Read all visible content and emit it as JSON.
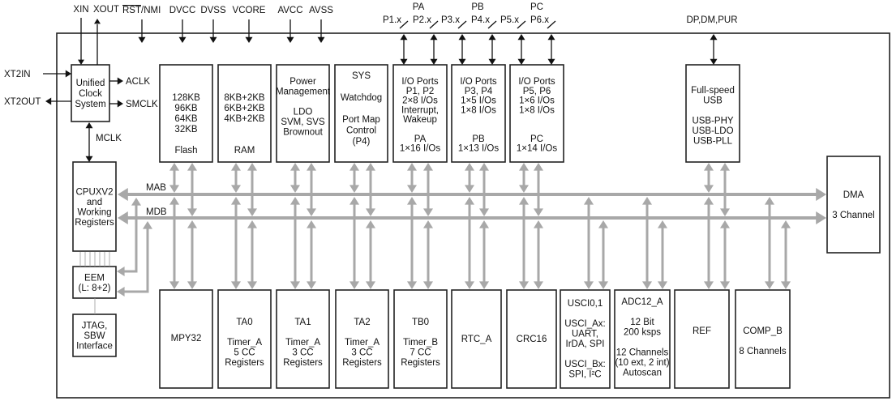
{
  "pins_top": {
    "xin": "XIN",
    "xout": "XOUT",
    "rst": "RST",
    "rst_suffix": "/NMI",
    "dvcc": "DVCC",
    "dvss": "DVSS",
    "vcore": "VCORE",
    "avcc": "AVCC",
    "avss": "AVSS",
    "pa": "PA",
    "pb": "PB",
    "pc": "PC",
    "p1": "P1.x",
    "p2": "P2.x",
    "p3": "P3.x",
    "p4": "P4.x",
    "p5": "P5.x",
    "p6": "P6.x",
    "usb_pins": "DP,DM,PUR"
  },
  "pins_side": {
    "xt2in": "XT2IN",
    "xt2out": "XT2OUT",
    "aclk": "ACLK",
    "smclk": "SMCLK",
    "mclk": "MCLK"
  },
  "buses": {
    "mab": "MAB",
    "mdb": "MDB"
  },
  "blocks": {
    "clock": [
      "Unified",
      "Clock",
      "System"
    ],
    "flash": [
      "128KB",
      "96KB",
      "64KB",
      "32KB",
      "",
      "Flash"
    ],
    "ram": [
      "8KB+2KB",
      "6KB+2KB",
      "4KB+2KB",
      "",
      "",
      "RAM"
    ],
    "power": [
      "Power",
      "Management",
      "",
      "LDO",
      "SVM, SVS",
      "Brownout"
    ],
    "sys": [
      "SYS",
      "",
      "Watchdog",
      "",
      "Port Map",
      "Control",
      "(P4)"
    ],
    "pa": [
      "I/O Ports",
      "P1, P2",
      "2×8 I/Os",
      "Interrupt,",
      "Wakeup",
      "",
      "PA",
      "1×16 I/Os"
    ],
    "pb": [
      "I/O Ports",
      "P3, P4",
      "1×5 I/Os",
      "1×8 I/Os",
      "",
      "",
      "PB",
      "1×13 I/Os"
    ],
    "pc": [
      "I/O Ports",
      "P5, P6",
      "1×6 I/Os",
      "1×8 I/Os",
      "",
      "",
      "PC",
      "1×14 I/Os"
    ],
    "usb": [
      "Full-speed",
      "USB",
      "",
      "USB-PHY",
      "USB-LDO",
      "USB-PLL"
    ],
    "cpu": [
      "CPUXV2",
      "and",
      "Working",
      "Registers"
    ],
    "eem": [
      "EEM",
      "(L: 8+2)"
    ],
    "jtag": [
      "JTAG,",
      "SBW",
      "Interface"
    ],
    "dma": [
      "DMA",
      "",
      "3 Channel"
    ],
    "mpy": [
      "MPY32"
    ],
    "ta0": [
      "TA0",
      "",
      "Timer_A",
      "5 CC",
      "Registers"
    ],
    "ta1": [
      "TA1",
      "",
      "Timer_A",
      "3 CC",
      "Registers"
    ],
    "ta2": [
      "TA2",
      "",
      "Timer_A",
      "3 CC",
      "Registers"
    ],
    "tb0": [
      "TB0",
      "",
      "Timer_B",
      "7 CC",
      "Registers"
    ],
    "rtc": [
      "RTC_A"
    ],
    "crc": [
      "CRC16"
    ],
    "usci": [
      "USCI0,1",
      "",
      "USCI_Ax:",
      "UART,",
      "IrDA, SPI",
      "",
      "USCI_Bx:",
      "SPI, I²C"
    ],
    "adc": [
      "ADC12_A",
      "",
      "12 Bit",
      "200 ksps",
      "",
      "12 Channels",
      "(10 ext, 2 int)",
      "Autoscan"
    ],
    "ref": [
      "REF"
    ],
    "comp": [
      "COMP_B",
      "",
      "8 Channels"
    ]
  }
}
